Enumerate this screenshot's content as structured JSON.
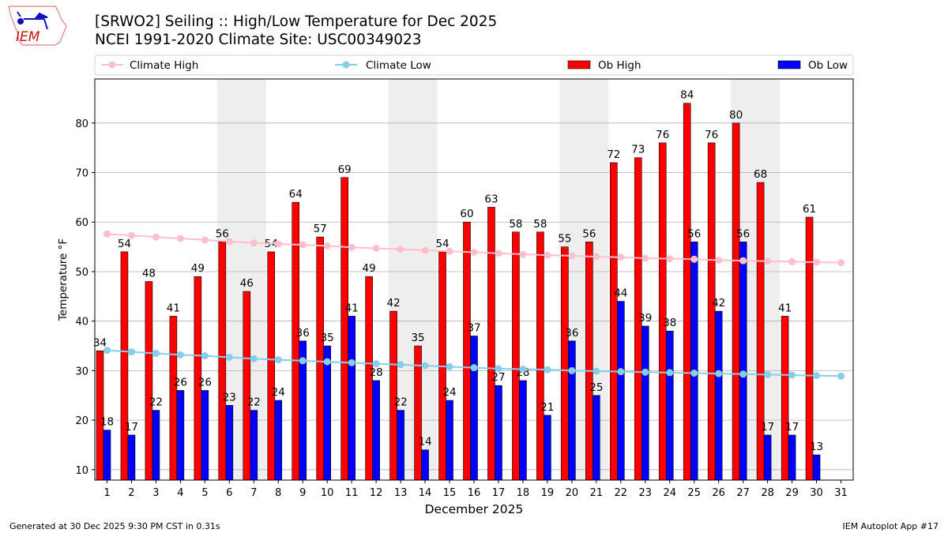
{
  "header": {
    "title_line1": "[SRWO2] Seiling :: High/Low Temperature for Dec 2025",
    "title_line2": "NCEI 1991-2020 Climate Site: USC00349023",
    "logo_text": "IEM"
  },
  "footer": {
    "left": "Generated at 30 Dec 2025 9:30 PM CST in 0.31s",
    "right": "IEM Autoplot App #17"
  },
  "colors": {
    "ob_high": "#ff0000",
    "ob_low": "#0000ff",
    "climate_high": "#ffc0cb",
    "climate_low": "#87ceeb",
    "weekend_shade": "#eeeeee"
  },
  "chart_data": {
    "type": "bar",
    "xlabel": "December 2025",
    "ylabel": "Temperature °F",
    "xlim": [
      0.5,
      31.5
    ],
    "ylim": [
      7.9,
      88.9
    ],
    "yticks": [
      10,
      20,
      30,
      40,
      50,
      60,
      70,
      80
    ],
    "grid": true,
    "legend_position": "top",
    "x": [
      1,
      2,
      3,
      4,
      5,
      6,
      7,
      8,
      9,
      10,
      11,
      12,
      13,
      14,
      15,
      16,
      17,
      18,
      19,
      20,
      21,
      22,
      23,
      24,
      25,
      26,
      27,
      28,
      29,
      30,
      31
    ],
    "weekend_days": [
      6,
      7,
      13,
      14,
      20,
      21,
      27,
      28
    ],
    "series": [
      {
        "name": "Climate High",
        "type": "line",
        "values": [
          57.6,
          57.3,
          57.0,
          56.7,
          56.4,
          56.1,
          55.8,
          55.6,
          55.4,
          55.2,
          54.9,
          54.7,
          54.5,
          54.3,
          54.1,
          53.9,
          53.7,
          53.5,
          53.3,
          53.2,
          53.0,
          52.9,
          52.7,
          52.6,
          52.5,
          52.3,
          52.2,
          52.1,
          52.0,
          51.9,
          51.8
        ]
      },
      {
        "name": "Climate Low",
        "type": "line",
        "values": [
          34.1,
          33.8,
          33.5,
          33.2,
          33.0,
          32.7,
          32.4,
          32.2,
          32.0,
          31.8,
          31.6,
          31.4,
          31.2,
          31.0,
          30.8,
          30.6,
          30.4,
          30.3,
          30.2,
          30.0,
          29.9,
          29.8,
          29.7,
          29.6,
          29.5,
          29.4,
          29.3,
          29.2,
          29.1,
          29.0,
          28.9
        ]
      },
      {
        "name": "Ob High",
        "type": "bar",
        "values": [
          34,
          54,
          48,
          41,
          49,
          56,
          46,
          54,
          64,
          57,
          69,
          49,
          42,
          35,
          54,
          60,
          63,
          58,
          58,
          55,
          56,
          72,
          73,
          76,
          84,
          76,
          80,
          68,
          41,
          61,
          null
        ]
      },
      {
        "name": "Ob Low",
        "type": "bar",
        "values": [
          18,
          17,
          22,
          26,
          26,
          23,
          22,
          24,
          36,
          35,
          41,
          28,
          22,
          14,
          24,
          37,
          27,
          28,
          21,
          36,
          25,
          44,
          39,
          38,
          56,
          42,
          56,
          17,
          17,
          13,
          null
        ]
      }
    ]
  }
}
